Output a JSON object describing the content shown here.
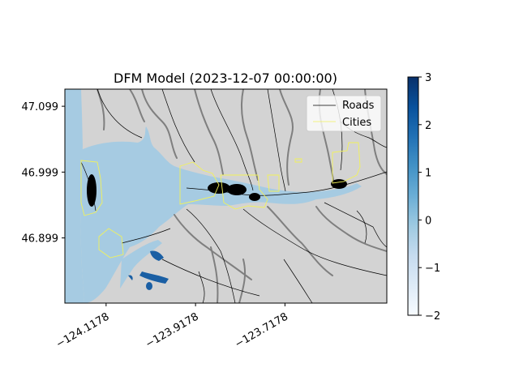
{
  "chart_data": {
    "type": "heatmap",
    "title": "DFM Model (2023-12-07 00:00:00)",
    "xlabel": "",
    "ylabel": "",
    "x_ticks": [
      "−124.1178",
      "−123.9178",
      "−123.7178"
    ],
    "x_tick_values": [
      -124.1178,
      -123.9178,
      -123.7178
    ],
    "y_ticks": [
      "47.099",
      "46.999",
      "46.899"
    ],
    "y_tick_values": [
      47.099,
      46.999,
      46.899
    ],
    "xlim": [
      -124.21,
      -123.49
    ],
    "ylim": [
      46.8,
      47.125
    ],
    "legend": {
      "placement": "top-right",
      "entries": [
        {
          "name": "Roads",
          "color": "#000000"
        },
        {
          "name": "Cities",
          "color": "#f2f25a"
        }
      ]
    },
    "colorbar": {
      "cmap": "Blues",
      "vmin": -2,
      "vmax": 3,
      "ticks": [
        3,
        2,
        1,
        0,
        -1,
        -2
      ],
      "tick_labels": [
        "3",
        "2",
        "1",
        "0",
        "−1",
        "−2"
      ]
    },
    "colors": {
      "land": "#d3d3d3",
      "water": "#a6cbe2",
      "river": "#7f7f7f",
      "road": "#000000",
      "city": "#f2f25a",
      "deep": "#1a5fa4"
    }
  }
}
